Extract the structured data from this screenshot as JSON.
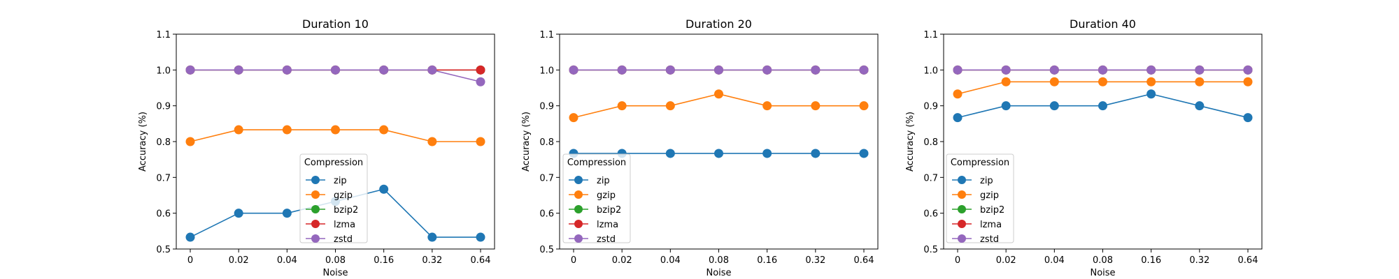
{
  "chart_data": [
    {
      "type": "line",
      "title": "Duration 10",
      "xlabel": "Noise",
      "ylabel": "Accuracy (%)",
      "categories": [
        "0",
        "0.02",
        "0.04",
        "0.08",
        "0.16",
        "0.32",
        "0.64"
      ],
      "ylim": [
        0.5,
        1.1
      ],
      "yticks": [
        "0.5",
        "0.6",
        "0.7",
        "0.8",
        "0.9",
        "1.0",
        "1.1"
      ],
      "grid": false,
      "legend": {
        "title": "Compression",
        "placement": "lower-center"
      },
      "series": [
        {
          "name": "zip",
          "color": "#1f77b4",
          "values": [
            0.533,
            0.6,
            0.6,
            0.633,
            0.667,
            0.533,
            0.533
          ]
        },
        {
          "name": "gzip",
          "color": "#ff7f0e",
          "values": [
            0.8,
            0.833,
            0.833,
            0.833,
            0.833,
            0.8,
            0.8
          ]
        },
        {
          "name": "bzip2",
          "color": "#2ca02c",
          "values": [
            1.0,
            1.0,
            1.0,
            1.0,
            1.0,
            1.0,
            1.0
          ]
        },
        {
          "name": "lzma",
          "color": "#d62728",
          "values": [
            1.0,
            1.0,
            1.0,
            1.0,
            1.0,
            1.0,
            1.0
          ]
        },
        {
          "name": "zstd",
          "color": "#9467bd",
          "values": [
            1.0,
            1.0,
            1.0,
            1.0,
            1.0,
            1.0,
            0.967
          ]
        }
      ]
    },
    {
      "type": "line",
      "title": "Duration 20",
      "xlabel": "Noise",
      "ylabel": "Accuracy (%)",
      "categories": [
        "0",
        "0.02",
        "0.04",
        "0.08",
        "0.16",
        "0.32",
        "0.64"
      ],
      "ylim": [
        0.5,
        1.1
      ],
      "yticks": [
        "0.5",
        "0.6",
        "0.7",
        "0.8",
        "0.9",
        "1.0",
        "1.1"
      ],
      "grid": false,
      "legend": {
        "title": "Compression",
        "placement": "lower-left"
      },
      "series": [
        {
          "name": "zip",
          "color": "#1f77b4",
          "values": [
            0.767,
            0.767,
            0.767,
            0.767,
            0.767,
            0.767,
            0.767
          ]
        },
        {
          "name": "gzip",
          "color": "#ff7f0e",
          "values": [
            0.867,
            0.9,
            0.9,
            0.933,
            0.9,
            0.9,
            0.9
          ]
        },
        {
          "name": "bzip2",
          "color": "#2ca02c",
          "values": [
            1.0,
            1.0,
            1.0,
            1.0,
            1.0,
            1.0,
            1.0
          ]
        },
        {
          "name": "lzma",
          "color": "#d62728",
          "values": [
            1.0,
            1.0,
            1.0,
            1.0,
            1.0,
            1.0,
            1.0
          ]
        },
        {
          "name": "zstd",
          "color": "#9467bd",
          "values": [
            1.0,
            1.0,
            1.0,
            1.0,
            1.0,
            1.0,
            1.0
          ]
        }
      ]
    },
    {
      "type": "line",
      "title": "Duration 40",
      "xlabel": "Noise",
      "ylabel": "Accuracy (%)",
      "categories": [
        "0",
        "0.02",
        "0.04",
        "0.08",
        "0.16",
        "0.32",
        "0.64"
      ],
      "ylim": [
        0.5,
        1.1
      ],
      "yticks": [
        "0.5",
        "0.6",
        "0.7",
        "0.8",
        "0.9",
        "1.0",
        "1.1"
      ],
      "grid": false,
      "legend": {
        "title": "Compression",
        "placement": "lower-left"
      },
      "series": [
        {
          "name": "zip",
          "color": "#1f77b4",
          "values": [
            0.867,
            0.9,
            0.9,
            0.9,
            0.933,
            0.9,
            0.867
          ]
        },
        {
          "name": "gzip",
          "color": "#ff7f0e",
          "values": [
            0.933,
            0.967,
            0.967,
            0.967,
            0.967,
            0.967,
            0.967
          ]
        },
        {
          "name": "bzip2",
          "color": "#2ca02c",
          "values": [
            1.0,
            1.0,
            1.0,
            1.0,
            1.0,
            1.0,
            1.0
          ]
        },
        {
          "name": "lzma",
          "color": "#d62728",
          "values": [
            1.0,
            1.0,
            1.0,
            1.0,
            1.0,
            1.0,
            1.0
          ]
        },
        {
          "name": "zstd",
          "color": "#9467bd",
          "values": [
            1.0,
            1.0,
            1.0,
            1.0,
            1.0,
            1.0,
            1.0
          ]
        }
      ]
    }
  ]
}
